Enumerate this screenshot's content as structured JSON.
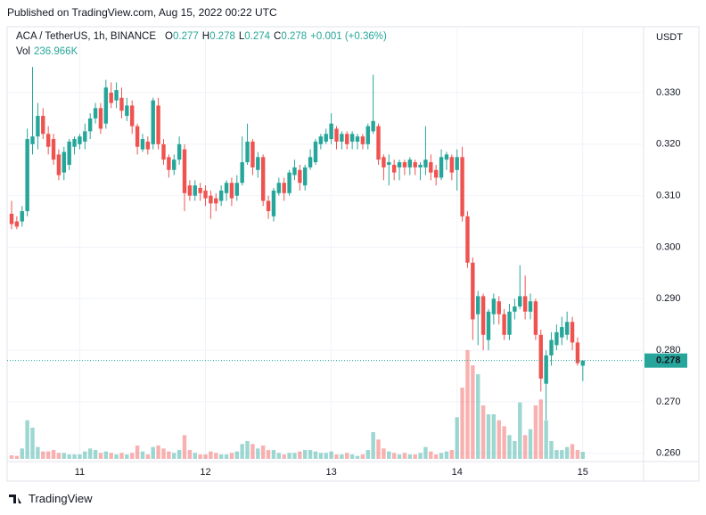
{
  "header": {
    "published": "Published on TradingView.com, Aug 15, 2022 00:22 UTC"
  },
  "legend": {
    "symbol": "ACA / TetherUS, 1h, BINANCE",
    "o_label": "O",
    "o": "0.277",
    "h_label": "H",
    "h": "0.278",
    "l_label": "L",
    "l": "0.274",
    "c_label": "C",
    "c": "0.278",
    "change": "+0.001 (+0.36%)",
    "vol_label": "Vol",
    "vol": "236.966K"
  },
  "footer": {
    "brand": "TradingView"
  },
  "chart_data": {
    "type": "candlestick",
    "currency": "USDT",
    "last_price_label": "0.278",
    "up_color": "#26a69a",
    "down_color": "#ef5350",
    "volume_up_color": "rgba(38,166,154,0.45)",
    "volume_down_color": "rgba(239,83,80,0.45)",
    "grid": true,
    "ylim": [
      0.2584,
      0.3428
    ],
    "yticks": [
      {
        "value": 0.26,
        "label": "0.260"
      },
      {
        "value": 0.27,
        "label": "0.270"
      },
      {
        "value": 0.28,
        "label": "0.280"
      },
      {
        "value": 0.29,
        "label": "0.290"
      },
      {
        "value": 0.3,
        "label": "0.300"
      },
      {
        "value": 0.31,
        "label": "0.310"
      },
      {
        "value": 0.32,
        "label": "0.320"
      },
      {
        "value": 0.33,
        "label": "0.330"
      }
    ],
    "xlim": [
      -0.85,
      120.6
    ],
    "xticks": [
      {
        "value": 13,
        "label": "11"
      },
      {
        "value": 37,
        "label": "12"
      },
      {
        "value": 61,
        "label": "13"
      },
      {
        "value": 85,
        "label": "14"
      },
      {
        "value": 109,
        "label": "15"
      }
    ],
    "vlim": [
      0,
      4200000
    ],
    "open": [
      0.3065,
      0.305,
      0.305,
      0.307,
      0.32,
      0.3215,
      0.3255,
      0.322,
      0.321,
      0.318,
      0.3145,
      0.316,
      0.3195,
      0.32,
      0.3205,
      0.3225,
      0.325,
      0.327,
      0.324,
      0.33,
      0.3285,
      0.329,
      0.3255,
      0.3275,
      0.3235,
      0.319,
      0.3205,
      0.32,
      0.3275,
      0.32,
      0.3175,
      0.315,
      0.317,
      0.319,
      0.312,
      0.31,
      0.3115,
      0.311,
      0.31,
      0.3095,
      0.309,
      0.3105,
      0.3125,
      0.31,
      0.3125,
      0.3165,
      0.3205,
      0.315,
      0.3175,
      0.309,
      0.306,
      0.3105,
      0.3125,
      0.3105,
      0.314,
      0.315,
      0.312,
      0.3155,
      0.3165,
      0.32,
      0.3205,
      0.321,
      0.323,
      0.3205,
      0.322,
      0.3205,
      0.3205,
      0.3215,
      0.32,
      0.3225,
      0.3235,
      0.3175,
      0.316,
      0.316,
      0.3155,
      0.3165,
      0.3155,
      0.3165,
      0.3155,
      0.3155,
      0.3165,
      0.315,
      0.3135,
      0.317,
      0.3175,
      0.315,
      0.3175,
      0.306,
      0.297,
      0.287,
      0.2905,
      0.282,
      0.287,
      0.2895,
      0.287,
      0.283,
      0.2875,
      0.2885,
      0.2905,
      0.2875,
      0.2895,
      0.283,
      0.2735,
      0.279,
      0.281,
      0.2825,
      0.283,
      0.2855,
      0.2815,
      0.277
    ],
    "high": [
      0.309,
      0.306,
      0.308,
      0.323,
      0.335,
      0.328,
      0.327,
      0.3235,
      0.322,
      0.319,
      0.3195,
      0.321,
      0.3215,
      0.322,
      0.324,
      0.326,
      0.328,
      0.328,
      0.3325,
      0.332,
      0.332,
      0.331,
      0.329,
      0.3285,
      0.324,
      0.322,
      0.3215,
      0.329,
      0.329,
      0.321,
      0.318,
      0.318,
      0.3215,
      0.32,
      0.313,
      0.313,
      0.3125,
      0.312,
      0.311,
      0.3105,
      0.312,
      0.313,
      0.3135,
      0.314,
      0.3215,
      0.324,
      0.321,
      0.3185,
      0.318,
      0.31,
      0.3115,
      0.3135,
      0.3135,
      0.315,
      0.317,
      0.316,
      0.316,
      0.319,
      0.321,
      0.322,
      0.323,
      0.326,
      0.3235,
      0.3225,
      0.3225,
      0.3225,
      0.322,
      0.322,
      0.324,
      0.3335,
      0.324,
      0.318,
      0.318,
      0.317,
      0.317,
      0.317,
      0.3175,
      0.317,
      0.3165,
      0.3235,
      0.318,
      0.316,
      0.319,
      0.3185,
      0.318,
      0.319,
      0.3195,
      0.307,
      0.298,
      0.2915,
      0.291,
      0.288,
      0.291,
      0.2905,
      0.288,
      0.289,
      0.29,
      0.2965,
      0.2945,
      0.291,
      0.29,
      0.284,
      0.28,
      0.2835,
      0.285,
      0.2865,
      0.2875,
      0.2865,
      0.2825,
      0.278
    ],
    "low": [
      0.3035,
      0.3035,
      0.304,
      0.306,
      0.318,
      0.319,
      0.321,
      0.318,
      0.316,
      0.313,
      0.313,
      0.315,
      0.318,
      0.319,
      0.319,
      0.321,
      0.324,
      0.322,
      0.323,
      0.327,
      0.327,
      0.325,
      0.3245,
      0.322,
      0.318,
      0.3185,
      0.318,
      0.319,
      0.319,
      0.316,
      0.3135,
      0.314,
      0.316,
      0.307,
      0.309,
      0.309,
      0.309,
      0.308,
      0.3055,
      0.307,
      0.308,
      0.309,
      0.308,
      0.309,
      0.312,
      0.316,
      0.314,
      0.3135,
      0.308,
      0.3055,
      0.305,
      0.31,
      0.309,
      0.31,
      0.313,
      0.311,
      0.311,
      0.315,
      0.316,
      0.319,
      0.32,
      0.32,
      0.319,
      0.319,
      0.319,
      0.319,
      0.319,
      0.319,
      0.319,
      0.322,
      0.316,
      0.313,
      0.312,
      0.313,
      0.313,
      0.314,
      0.314,
      0.314,
      0.313,
      0.314,
      0.313,
      0.312,
      0.313,
      0.315,
      0.313,
      0.311,
      0.305,
      0.296,
      0.282,
      0.281,
      0.28,
      0.28,
      0.285,
      0.285,
      0.282,
      0.282,
      0.286,
      0.288,
      0.286,
      0.286,
      0.282,
      0.272,
      0.2665,
      0.277,
      0.28,
      0.281,
      0.282,
      0.28,
      0.277,
      0.274
    ],
    "close": [
      0.3045,
      0.304,
      0.307,
      0.321,
      0.3215,
      0.3255,
      0.322,
      0.3195,
      0.317,
      0.314,
      0.3185,
      0.3205,
      0.321,
      0.3215,
      0.3225,
      0.325,
      0.327,
      0.323,
      0.331,
      0.328,
      0.3305,
      0.3265,
      0.3275,
      0.3235,
      0.3195,
      0.321,
      0.319,
      0.3285,
      0.32,
      0.317,
      0.315,
      0.317,
      0.32,
      0.3105,
      0.31,
      0.312,
      0.3105,
      0.3095,
      0.3085,
      0.3085,
      0.311,
      0.3125,
      0.3095,
      0.3125,
      0.3165,
      0.3205,
      0.3155,
      0.3175,
      0.309,
      0.307,
      0.311,
      0.3125,
      0.3105,
      0.3145,
      0.3155,
      0.3125,
      0.3155,
      0.3175,
      0.3205,
      0.3215,
      0.322,
      0.324,
      0.3205,
      0.322,
      0.32,
      0.322,
      0.3215,
      0.32,
      0.3235,
      0.3245,
      0.317,
      0.3155,
      0.3165,
      0.3145,
      0.3165,
      0.3155,
      0.317,
      0.3155,
      0.316,
      0.317,
      0.3145,
      0.3135,
      0.3175,
      0.318,
      0.3145,
      0.3175,
      0.306,
      0.297,
      0.286,
      0.2905,
      0.283,
      0.2875,
      0.29,
      0.287,
      0.283,
      0.2875,
      0.2885,
      0.2905,
      0.2875,
      0.2895,
      0.283,
      0.2745,
      0.279,
      0.282,
      0.2835,
      0.2845,
      0.2855,
      0.2815,
      0.2775,
      0.278
    ],
    "volume": [
      120000,
      100000,
      350000,
      1300000,
      1050000,
      400000,
      250000,
      250000,
      300000,
      200000,
      200000,
      150000,
      150000,
      150000,
      250000,
      350000,
      300000,
      200000,
      250000,
      200000,
      150000,
      200000,
      150000,
      200000,
      450000,
      250000,
      150000,
      400000,
      450000,
      350000,
      250000,
      200000,
      300000,
      800000,
      300000,
      200000,
      150000,
      150000,
      250000,
      200000,
      150000,
      150000,
      200000,
      250000,
      500000,
      600000,
      500000,
      350000,
      450000,
      300000,
      300000,
      200000,
      150000,
      200000,
      200000,
      250000,
      300000,
      300000,
      250000,
      200000,
      200000,
      250000,
      150000,
      150000,
      200000,
      150000,
      100000,
      150000,
      300000,
      900000,
      650000,
      350000,
      250000,
      200000,
      150000,
      200000,
      150000,
      150000,
      200000,
      400000,
      250000,
      150000,
      200000,
      250000,
      300000,
      1400000,
      2400000,
      3660000,
      3150000,
      2850000,
      1800000,
      1500000,
      1500000,
      1300000,
      1100000,
      800000,
      600000,
      1900000,
      800000,
      1000000,
      1800000,
      2000000,
      1300000,
      600000,
      300000,
      300000,
      400000,
      500000,
      300000,
      236966
    ]
  }
}
